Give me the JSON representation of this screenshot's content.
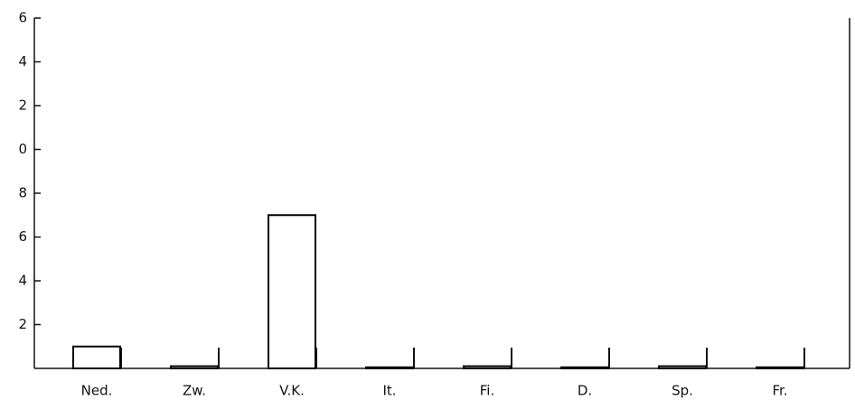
{
  "chart_data": {
    "type": "bar",
    "categories": [
      "Ned.",
      "Zw.",
      "V.K.",
      "It.",
      "Fi.",
      "D.",
      "Sp.",
      "Fr."
    ],
    "values": [
      1,
      0.1,
      7,
      0.05,
      0.1,
      0.05,
      0.1,
      0.05
    ],
    "color": "#000000",
    "ylim": [
      0,
      16
    ],
    "yticks": [
      2,
      4,
      6,
      8,
      {
        "value": 10,
        "label": "0"
      },
      {
        "value": 12,
        "label": "2"
      },
      {
        "value": 14,
        "label": "4"
      },
      {
        "value": 16,
        "label": "6"
      }
    ]
  }
}
